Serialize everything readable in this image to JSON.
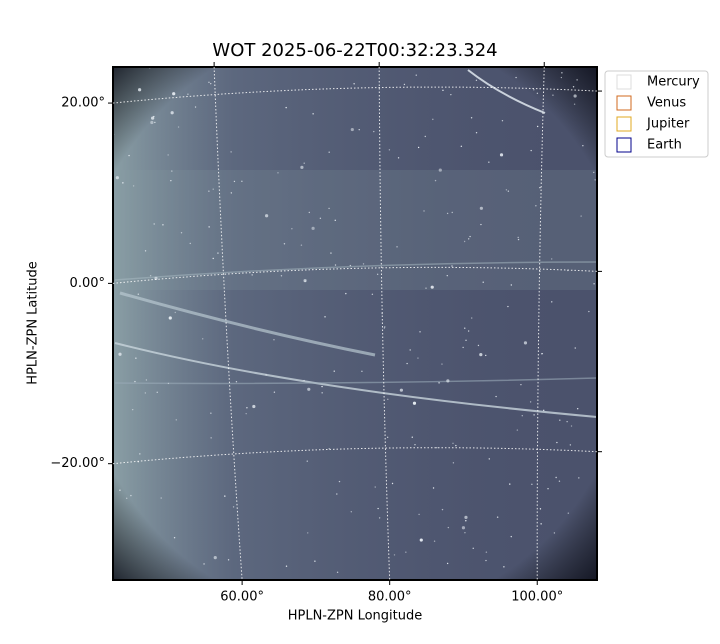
{
  "chart_data": {
    "type": "image",
    "title": "WOT 2025-06-22T00:32:23.324",
    "x_label": "HPLN-ZPN Longitude",
    "y_label": "HPLN-ZPN Latitude",
    "xlim": [
      42.5,
      108.1
    ],
    "ylim": [
      -32.9,
      24.0
    ],
    "xticks": [
      {
        "value": 60,
        "label": "60.00°"
      },
      {
        "value": 80,
        "label": "80.00°"
      },
      {
        "value": 100,
        "label": "100.00°"
      }
    ],
    "yticks": [
      {
        "value": -20,
        "label": "−20.00°"
      },
      {
        "value": 0,
        "label": "0.00°"
      },
      {
        "value": 20,
        "label": "20.00°"
      }
    ],
    "grid": true,
    "legend": "upper right outside",
    "series": [
      {
        "name": "Mercury",
        "color": "#dcdcdc"
      },
      {
        "name": "Venus",
        "color": "#d2691e"
      },
      {
        "name": "Jupiter",
        "color": "#e0a820"
      },
      {
        "name": "Earth",
        "color": "#00008b"
      }
    ]
  }
}
